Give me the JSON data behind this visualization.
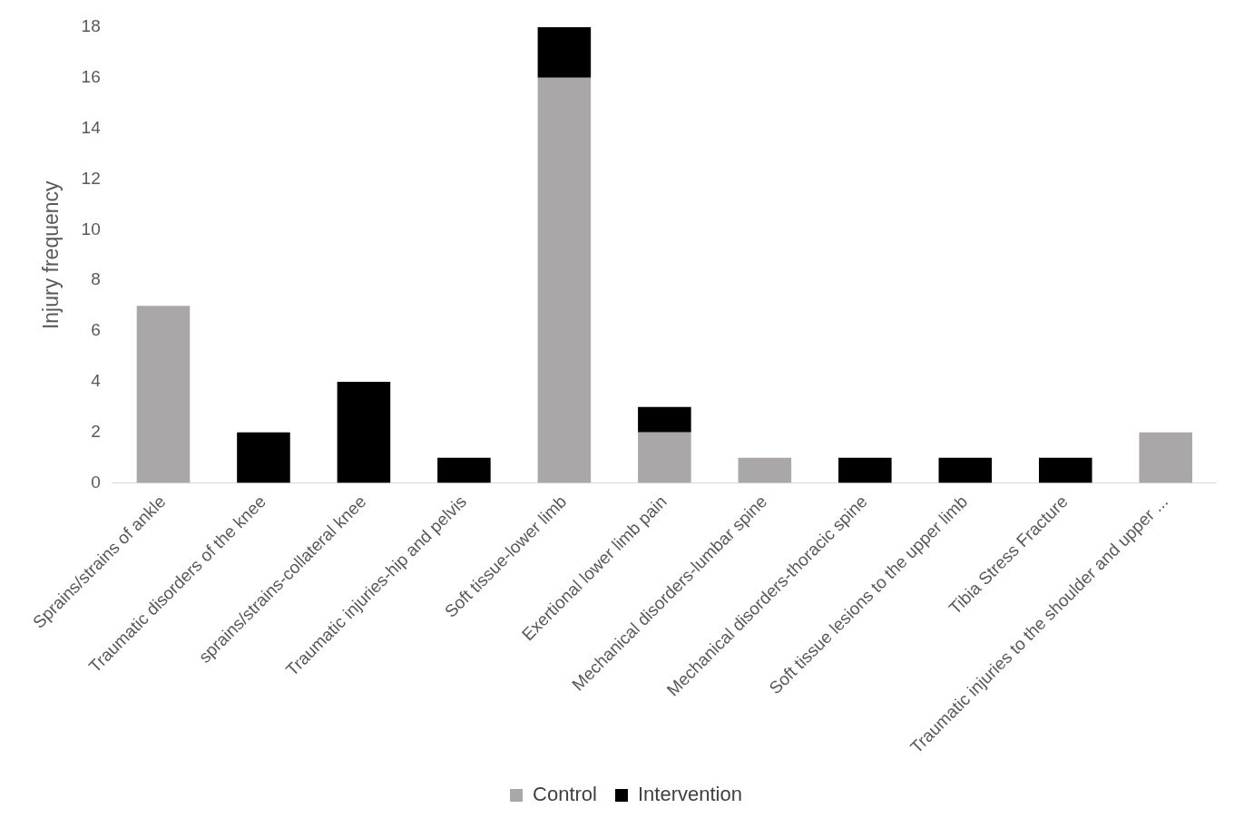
{
  "chart_data": {
    "type": "bar",
    "stacked": true,
    "ylabel": "Injury frequency",
    "categories": [
      "Sprains/strains of ankle",
      "Traumatic disorders of the knee",
      "sprains/strains-collateral knee",
      "Traumatic injuries-hip and pelvis",
      "Soft tissue-lower limb",
      "Exertional lower limb pain",
      "Mechanical disorders-lumbar spine",
      "Mechanical disorders-thoracic spine",
      "Soft tissue lesions to the upper limb",
      "Tibia Stress Fracture",
      "Traumatic injuries to the shoulder and upper ..."
    ],
    "series": [
      {
        "name": "Control",
        "color": "#a9a7a7",
        "values": [
          7,
          0,
          0,
          0,
          16,
          2,
          1,
          0,
          0,
          0,
          2
        ]
      },
      {
        "name": "Intervention",
        "color": "#000000",
        "values": [
          0,
          2,
          4,
          1,
          2,
          1,
          0,
          1,
          1,
          1,
          0
        ]
      }
    ],
    "ylim": [
      0,
      18
    ],
    "yticks": [
      0,
      2,
      4,
      6,
      8,
      10,
      12,
      14,
      16,
      18
    ],
    "grid": false,
    "legend": "bottom"
  }
}
